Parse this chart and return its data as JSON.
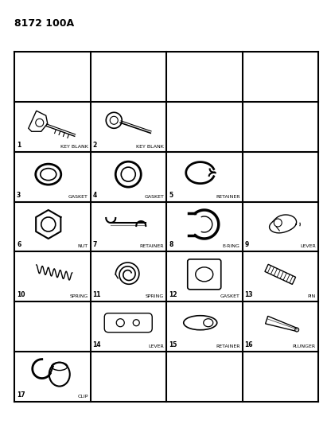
{
  "title": "8172 100A",
  "background_color": "#ffffff",
  "grid_color": "#000000",
  "num_cols": 4,
  "num_rows": 7,
  "parts": [
    {
      "num": "1",
      "label": "KEY BLANK",
      "row": 1,
      "col": 0
    },
    {
      "num": "2",
      "label": "KEY BLANK",
      "row": 1,
      "col": 1
    },
    {
      "num": "3",
      "label": "GASKET",
      "row": 2,
      "col": 0
    },
    {
      "num": "4",
      "label": "GASKET",
      "row": 2,
      "col": 1
    },
    {
      "num": "5",
      "label": "RETAINER",
      "row": 2,
      "col": 2
    },
    {
      "num": "6",
      "label": "NUT",
      "row": 3,
      "col": 0
    },
    {
      "num": "7",
      "label": "RETAINER",
      "row": 3,
      "col": 1
    },
    {
      "num": "8",
      "label": "E-RING",
      "row": 3,
      "col": 2
    },
    {
      "num": "9",
      "label": "LEVER",
      "row": 3,
      "col": 3
    },
    {
      "num": "10",
      "label": "SPRING",
      "row": 4,
      "col": 0
    },
    {
      "num": "11",
      "label": "SPRING",
      "row": 4,
      "col": 1
    },
    {
      "num": "12",
      "label": "GASKET",
      "row": 4,
      "col": 2
    },
    {
      "num": "13",
      "label": "PIN",
      "row": 4,
      "col": 3
    },
    {
      "num": "14",
      "label": "LEVER",
      "row": 5,
      "col": 1
    },
    {
      "num": "15",
      "label": "RETAINER",
      "row": 5,
      "col": 2
    },
    {
      "num": "16",
      "label": "PLUNGER",
      "row": 5,
      "col": 3
    },
    {
      "num": "17",
      "label": "CLIP",
      "row": 6,
      "col": 0
    }
  ],
  "text_color": "#000000",
  "line_width": 1.5
}
